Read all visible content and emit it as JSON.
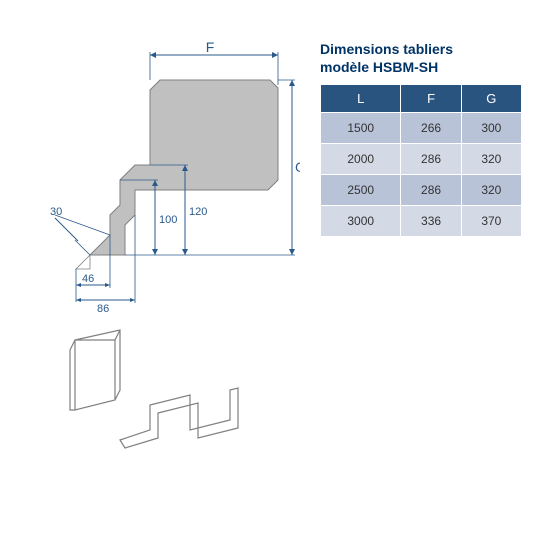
{
  "title_line1": "Dimensions tabliers",
  "title_line2": "modèle HSBM-SH",
  "table": {
    "header_bg": "#2a5480",
    "header_color": "#ffffff",
    "row_alt_bg_1": "#b8c3d8",
    "row_alt_bg_2": "#d3d9e5",
    "columns": [
      "L",
      "F",
      "G"
    ],
    "rows": [
      [
        "1500",
        "266",
        "300"
      ],
      [
        "2000",
        "286",
        "320"
      ],
      [
        "2500",
        "286",
        "320"
      ],
      [
        "3000",
        "336",
        "370"
      ]
    ]
  },
  "diagram": {
    "profile_fill": "#c0c0c0",
    "profile_stroke": "#808080",
    "dim_color": "#2a5a8a",
    "dim_stroke_width": 1,
    "labels": {
      "F": "F",
      "G": "G",
      "d30": "30",
      "d46": "46",
      "d86": "86",
      "d100": "100",
      "d120": "120"
    }
  }
}
